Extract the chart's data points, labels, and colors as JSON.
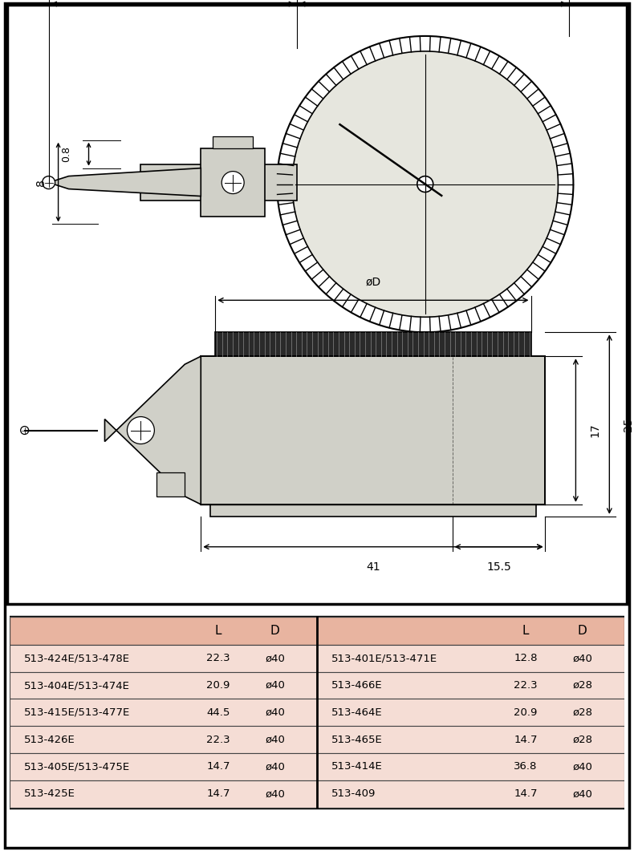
{
  "table_header_bg": "#e8b4a0",
  "table_row_bg": "#f5ddd5",
  "table_border_color": "#444444",
  "table_left": [
    [
      "513-424E/513-478E",
      "22.3",
      "ø40"
    ],
    [
      "513-404E/513-474E",
      "20.9",
      "ø40"
    ],
    [
      "513-415E/513-477E",
      "44.5",
      "ø40"
    ],
    [
      "513-426E",
      "22.3",
      "ø40"
    ],
    [
      "513-405E/513-475E",
      "14.7",
      "ø40"
    ],
    [
      "513-425E",
      "14.7",
      "ø40"
    ]
  ],
  "table_right": [
    [
      "513-401E/513-471E",
      "12.8",
      "ø40"
    ],
    [
      "513-466E",
      "22.3",
      "ø28"
    ],
    [
      "513-464E",
      "20.9",
      "ø28"
    ],
    [
      "513-465E",
      "14.7",
      "ø28"
    ],
    [
      "513-414E",
      "36.8",
      "ø40"
    ],
    [
      "513-409",
      "14.7",
      "ø40"
    ]
  ],
  "dial_color": "#e6e6de",
  "body_color": "#d0d0c8",
  "background": "#ffffff",
  "outer_border_color": "#222222",
  "dim_fontsize": 10,
  "label_fontsize": 10
}
